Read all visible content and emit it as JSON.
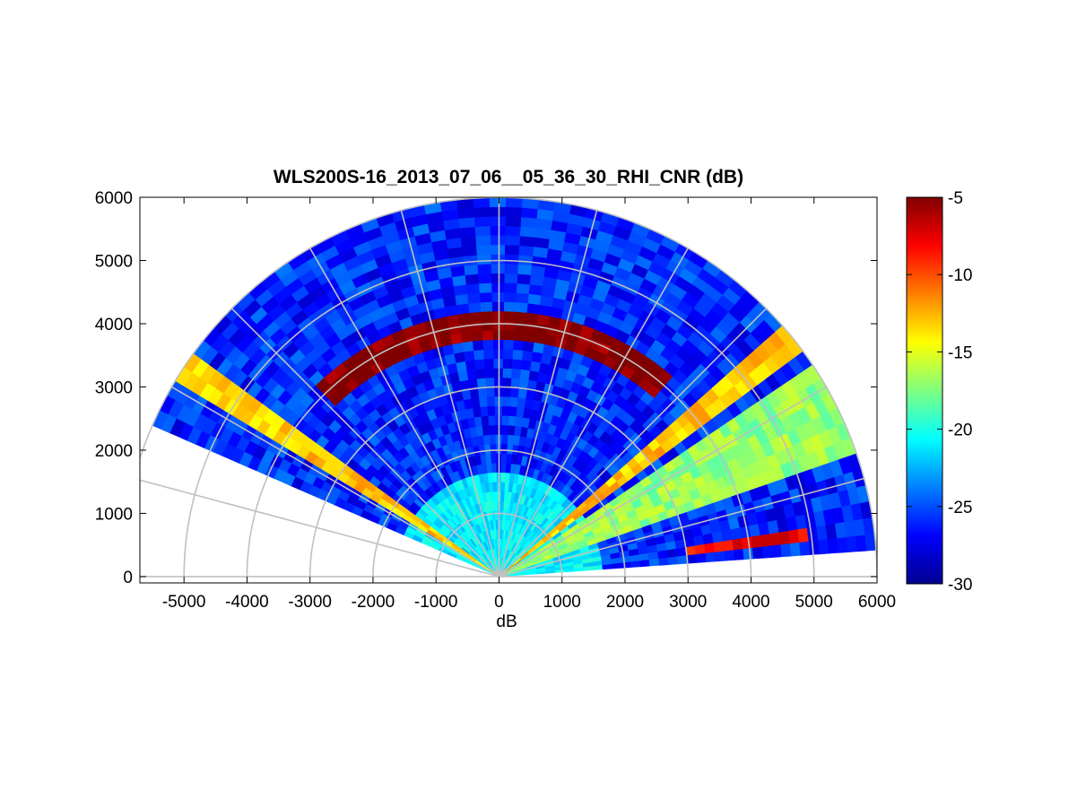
{
  "chart_data": {
    "type": "heatmap",
    "subtype": "polar-sector (RHI scan)",
    "title": "WLS200S-16_2013_07_06__05_36_30_RHI_CNR (dB)",
    "xlabel": "dB",
    "ylabel": "",
    "xlim": [
      -5700,
      6000
    ],
    "ylim": [
      -100,
      6000
    ],
    "x_ticks": [
      -5000,
      -4000,
      -3000,
      -2000,
      -1000,
      0,
      1000,
      2000,
      3000,
      4000,
      5000,
      6000
    ],
    "y_ticks": [
      0,
      1000,
      2000,
      3000,
      4000,
      5000,
      6000
    ],
    "grid": "polar (range rings every 1000, radial spokes every 15 deg)",
    "colormap": "jet",
    "colorbar": {
      "range": [
        -30,
        -5
      ],
      "ticks": [
        -5,
        -10,
        -15,
        -20,
        -25,
        -30
      ],
      "location": "right"
    },
    "scan": {
      "max_range": 6000,
      "azimuth_deg_min": 4,
      "azimuth_deg_max": 155
    },
    "features": [
      {
        "name": "near-ground layer",
        "range": [
          0,
          1700
        ],
        "cnr_db": -21
      },
      {
        "name": "cloud base (dark red arc)",
        "range": [
          3800,
          4200
        ],
        "azimuth_deg": [
          50,
          135
        ],
        "cnr_db": -5
      },
      {
        "name": "strong return band",
        "azimuth_deg": [
          143,
          150
        ],
        "cnr_db": -13
      },
      {
        "name": "strong return band",
        "azimuth_deg": [
          36,
          41
        ],
        "cnr_db": -13
      },
      {
        "name": "moderate return wedge",
        "azimuth_deg": [
          18,
          34
        ],
        "cnr_db": -17
      },
      {
        "name": "red streak",
        "azimuth_deg": [
          7,
          10
        ],
        "range": [
          3000,
          5000
        ],
        "cnr_db": -8
      }
    ],
    "background_cnr_db": -26
  }
}
